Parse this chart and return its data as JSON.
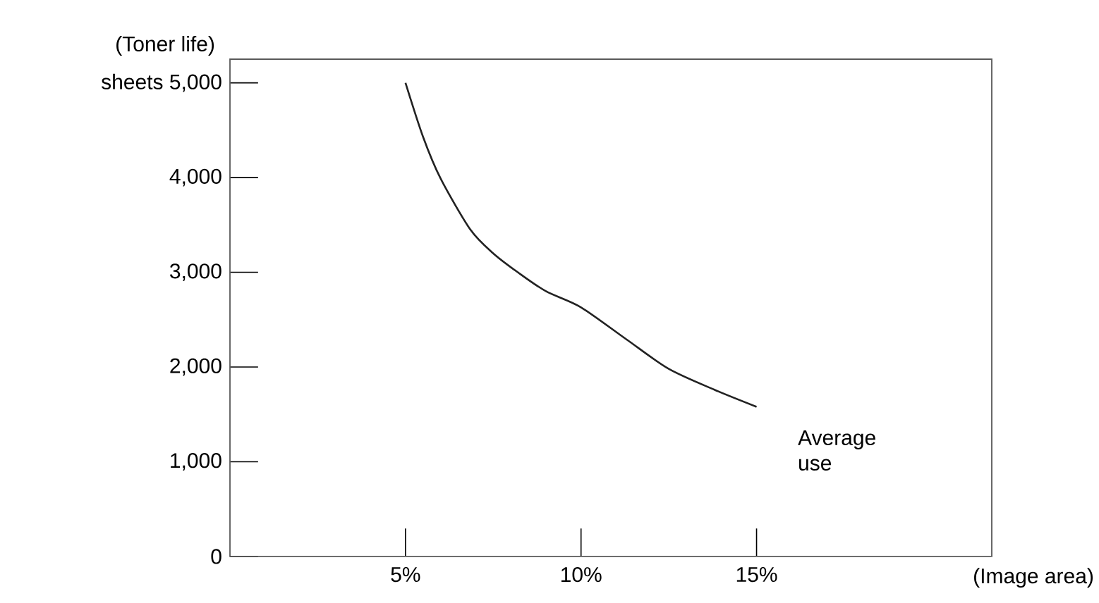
{
  "chart_data": {
    "type": "line",
    "ylabel": "(Toner life)",
    "xlabel": "(Image area)",
    "x": [
      5,
      5.5,
      6,
      6.85,
      7.5,
      8.2,
      9,
      10,
      11.3,
      12.5,
      13.8,
      15
    ],
    "series": [
      {
        "color": "#222222",
        "values": [
          5000,
          4430,
          3990,
          3450,
          3200,
          3000,
          2800,
          2630,
          2290,
          1980,
          1760,
          1580
        ]
      }
    ],
    "xlim": [
      0,
      21.7
    ],
    "ylim": [
      0,
      5250
    ],
    "xticks": [
      {
        "value": 5,
        "label": "5%"
      },
      {
        "value": 10,
        "label": "10%"
      },
      {
        "value": 15,
        "label": "15%"
      }
    ],
    "yticks": [
      0,
      {
        "value": 1000,
        "label": "1,000"
      },
      {
        "value": 2000,
        "label": "2,000"
      },
      {
        "value": 3000,
        "label": "3,000"
      },
      {
        "value": 4000,
        "label": "4,000"
      },
      {
        "value": 5000,
        "label": "sheets 5,000"
      }
    ],
    "annotations": [
      "Average use"
    ],
    "grid": false,
    "marker": "none",
    "line_style": "solid"
  }
}
